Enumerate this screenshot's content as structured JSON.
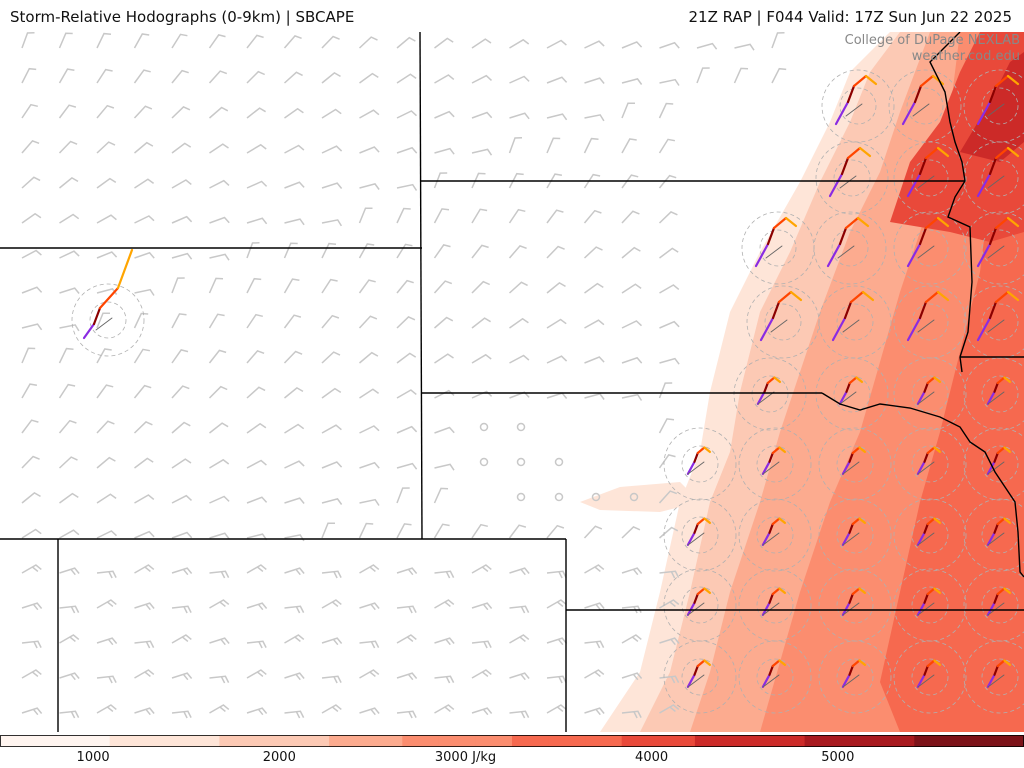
{
  "header": {
    "left_title": "Storm-Relative Hodographs (0-9km) | SBCAPE",
    "right_title": "21Z RAP | F044 Valid: 17Z Sun Jun 22 2025"
  },
  "credit": {
    "line1": "College of DuPage NEXLAB",
    "line2": "weather.cod.edu"
  },
  "colorbar": {
    "unit": "J/kg",
    "ticks": [
      "1000",
      "2000",
      "3000 J/kg",
      "4000",
      "5000"
    ],
    "tick_values": [
      1000,
      2000,
      3000,
      4000,
      5000
    ],
    "range": [
      500,
      6000
    ],
    "colors": [
      "#fff5f0",
      "#fee5d8",
      "#fcc9b4",
      "#fcab8f",
      "#fb8d6f",
      "#f6694f",
      "#e9493a",
      "#cc2a28",
      "#a81a1f",
      "#7c1219"
    ]
  },
  "legend_colors": {
    "hodo_low": "#8a2be2",
    "hodo_mid": "#8b0000",
    "hodo_upper": "#ff4500",
    "hodo_top": "#ffa500",
    "barb": "#c8c8c8",
    "border": "#000000"
  }
}
